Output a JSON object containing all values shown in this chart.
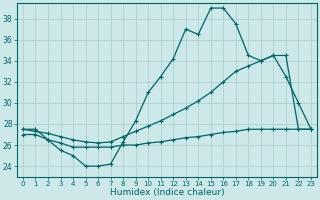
{
  "xlabel": "Humidex (Indice chaleur)",
  "background_color": "#cce8e8",
  "grid_color": "#aacccc",
  "line_color": "#006666",
  "ylim": [
    23.0,
    39.5
  ],
  "yticks": [
    24,
    26,
    28,
    30,
    32,
    34,
    36,
    38
  ],
  "x_ticks": [
    0,
    1,
    2,
    3,
    4,
    5,
    6,
    7,
    8,
    9,
    10,
    11,
    12,
    13,
    14,
    15,
    16,
    17,
    18,
    19,
    20,
    21,
    22,
    23
  ],
  "curve1_x": [
    0,
    1,
    2,
    3,
    4,
    5,
    6,
    7,
    8,
    9,
    10,
    11,
    12,
    13,
    14,
    15,
    16,
    17,
    18,
    19,
    20,
    21,
    22,
    23
  ],
  "curve1_y": [
    27.5,
    27.5,
    26.5,
    25.5,
    25.0,
    24.0,
    24.0,
    24.2,
    26.3,
    28.3,
    31.0,
    32.5,
    34.2,
    37.0,
    36.5,
    39.0,
    39.0,
    37.5,
    34.5,
    34.0,
    34.5,
    32.5,
    30.0,
    27.5
  ],
  "curve2_x": [
    0,
    1,
    2,
    3,
    4,
    5,
    6,
    7,
    8,
    9,
    10,
    11,
    12,
    13,
    14,
    15,
    16,
    17,
    18,
    19,
    20,
    21,
    22,
    23
  ],
  "curve2_y": [
    27.5,
    27.3,
    27.1,
    26.8,
    26.5,
    26.3,
    26.2,
    26.3,
    26.8,
    27.3,
    27.8,
    28.3,
    28.9,
    29.5,
    30.2,
    31.0,
    32.0,
    33.0,
    33.5,
    34.0,
    34.5,
    34.5,
    27.5,
    27.5
  ],
  "curve3_x": [
    0,
    1,
    2,
    3,
    4,
    5,
    6,
    7,
    8,
    9,
    10,
    11,
    12,
    13,
    14,
    15,
    16,
    17,
    18,
    19,
    20,
    21,
    22,
    23
  ],
  "curve3_y": [
    27.0,
    27.0,
    26.5,
    26.2,
    25.8,
    25.8,
    25.8,
    25.8,
    26.0,
    26.0,
    26.2,
    26.3,
    26.5,
    26.7,
    26.8,
    27.0,
    27.2,
    27.3,
    27.5,
    27.5,
    27.5,
    27.5,
    27.5,
    27.5
  ]
}
